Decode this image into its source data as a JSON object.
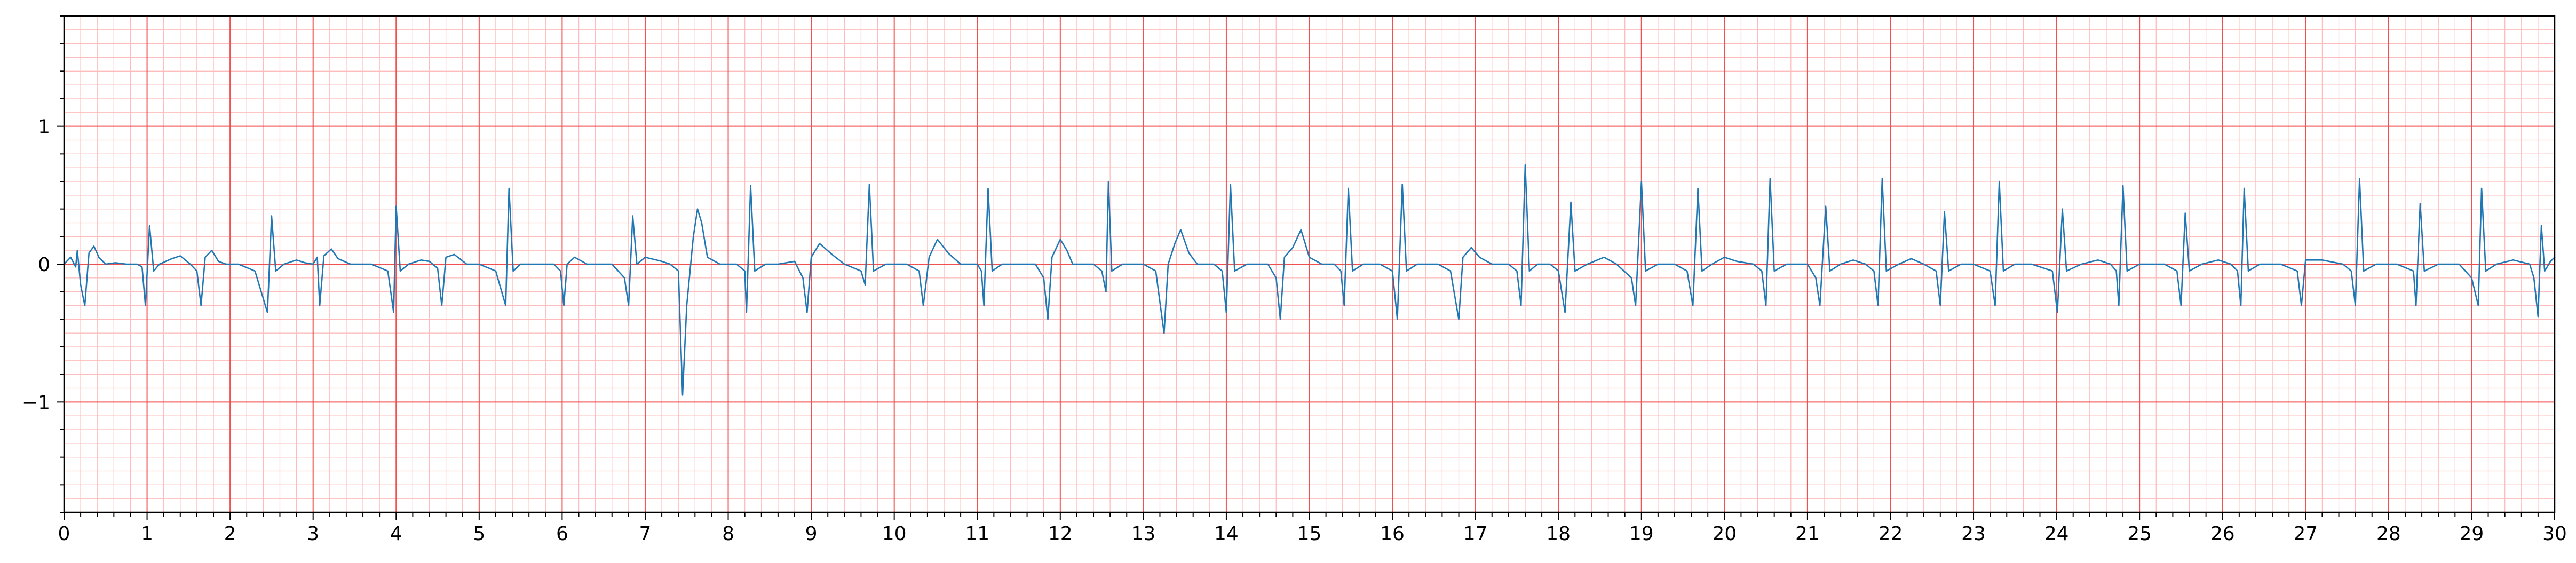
{
  "chart_data": {
    "type": "line",
    "title": "",
    "xlabel": "",
    "ylabel": "",
    "xlim": [
      0,
      30
    ],
    "ylim": [
      -1.8,
      1.8
    ],
    "grid": "ECG paper: major grid every 1 s / 1 unit (red), minor grid every 0.2 s / 0.1 unit (light red)",
    "x_ticks": [
      "0",
      "1",
      "2",
      "3",
      "4",
      "5",
      "6",
      "7",
      "8",
      "9",
      "10",
      "11",
      "12",
      "13",
      "14",
      "15",
      "16",
      "17",
      "18",
      "19",
      "20",
      "21",
      "22",
      "23",
      "24",
      "25",
      "26",
      "27",
      "28",
      "29",
      "30"
    ],
    "y_ticks": [
      {
        "value": 1,
        "label": "1"
      },
      {
        "value": 0,
        "label": "0"
      },
      {
        "value": -1,
        "label": "−1"
      }
    ],
    "colors": {
      "signal": "#1f77b4",
      "major_grid": "#f05050",
      "minor_grid": "#ffbcbc",
      "axes": "#000000"
    },
    "series": [
      {
        "name": "",
        "note_points": "x in seconds, y in signal units; ECG trace approximated from beat landmarks",
        "points": [
          [
            0.0,
            0.0
          ],
          [
            0.08,
            0.05
          ],
          [
            0.14,
            -0.02
          ],
          [
            0.16,
            0.1
          ],
          [
            0.2,
            -0.15
          ],
          [
            0.25,
            -0.3
          ],
          [
            0.3,
            0.08
          ],
          [
            0.36,
            0.13
          ],
          [
            0.42,
            0.05
          ],
          [
            0.5,
            0.0
          ],
          [
            0.62,
            0.01
          ],
          [
            0.75,
            0.0
          ],
          [
            0.88,
            0.0
          ],
          [
            0.94,
            -0.02
          ],
          [
            0.98,
            -0.3
          ],
          [
            1.03,
            0.28
          ],
          [
            1.08,
            -0.05
          ],
          [
            1.15,
            0.0
          ],
          [
            1.3,
            0.04
          ],
          [
            1.4,
            0.06
          ],
          [
            1.52,
            0.0
          ],
          [
            1.6,
            -0.05
          ],
          [
            1.65,
            -0.3
          ],
          [
            1.7,
            0.05
          ],
          [
            1.78,
            0.1
          ],
          [
            1.86,
            0.02
          ],
          [
            1.95,
            0.0
          ],
          [
            2.1,
            0.0
          ],
          [
            2.3,
            -0.05
          ],
          [
            2.45,
            -0.35
          ],
          [
            2.5,
            0.35
          ],
          [
            2.55,
            -0.05
          ],
          [
            2.65,
            0.0
          ],
          [
            2.8,
            0.03
          ],
          [
            2.9,
            0.01
          ],
          [
            3.0,
            0.0
          ],
          [
            3.05,
            0.05
          ],
          [
            3.08,
            -0.3
          ],
          [
            3.13,
            0.06
          ],
          [
            3.22,
            0.11
          ],
          [
            3.3,
            0.04
          ],
          [
            3.45,
            0.0
          ],
          [
            3.7,
            0.0
          ],
          [
            3.9,
            -0.05
          ],
          [
            3.97,
            -0.35
          ],
          [
            4.0,
            0.42
          ],
          [
            4.05,
            -0.05
          ],
          [
            4.15,
            0.0
          ],
          [
            4.3,
            0.03
          ],
          [
            4.4,
            0.02
          ],
          [
            4.5,
            -0.03
          ],
          [
            4.55,
            -0.3
          ],
          [
            4.6,
            0.05
          ],
          [
            4.7,
            0.07
          ],
          [
            4.85,
            0.0
          ],
          [
            5.0,
            0.0
          ],
          [
            5.2,
            -0.05
          ],
          [
            5.32,
            -0.3
          ],
          [
            5.36,
            0.55
          ],
          [
            5.41,
            -0.05
          ],
          [
            5.5,
            0.0
          ],
          [
            5.7,
            0.0
          ],
          [
            5.9,
            0.0
          ],
          [
            5.98,
            -0.05
          ],
          [
            6.02,
            -0.3
          ],
          [
            6.06,
            0.0
          ],
          [
            6.15,
            0.05
          ],
          [
            6.3,
            0.0
          ],
          [
            6.6,
            0.0
          ],
          [
            6.75,
            -0.1
          ],
          [
            6.8,
            -0.3
          ],
          [
            6.85,
            0.35
          ],
          [
            6.9,
            0.0
          ],
          [
            7.0,
            0.05
          ],
          [
            7.2,
            0.02
          ],
          [
            7.3,
            0.0
          ],
          [
            7.4,
            -0.05
          ],
          [
            7.45,
            -0.95
          ],
          [
            7.5,
            -0.3
          ],
          [
            7.58,
            0.2
          ],
          [
            7.63,
            0.4
          ],
          [
            7.68,
            0.3
          ],
          [
            7.75,
            0.05
          ],
          [
            7.9,
            0.0
          ],
          [
            8.1,
            0.0
          ],
          [
            8.2,
            -0.05
          ],
          [
            8.22,
            -0.35
          ],
          [
            8.27,
            0.57
          ],
          [
            8.32,
            -0.05
          ],
          [
            8.45,
            0.0
          ],
          [
            8.6,
            0.0
          ],
          [
            8.8,
            0.02
          ],
          [
            8.9,
            -0.1
          ],
          [
            8.95,
            -0.35
          ],
          [
            9.0,
            0.05
          ],
          [
            9.1,
            0.15
          ],
          [
            9.25,
            0.07
          ],
          [
            9.4,
            0.0
          ],
          [
            9.6,
            -0.05
          ],
          [
            9.65,
            -0.15
          ],
          [
            9.7,
            0.58
          ],
          [
            9.75,
            -0.05
          ],
          [
            9.9,
            0.0
          ],
          [
            10.15,
            0.0
          ],
          [
            10.3,
            -0.05
          ],
          [
            10.35,
            -0.3
          ],
          [
            10.42,
            0.05
          ],
          [
            10.52,
            0.18
          ],
          [
            10.65,
            0.08
          ],
          [
            10.8,
            0.0
          ],
          [
            11.0,
            0.0
          ],
          [
            11.05,
            -0.05
          ],
          [
            11.08,
            -0.3
          ],
          [
            11.13,
            0.55
          ],
          [
            11.18,
            -0.05
          ],
          [
            11.3,
            0.0
          ],
          [
            11.5,
            0.0
          ],
          [
            11.7,
            0.0
          ],
          [
            11.8,
            -0.1
          ],
          [
            11.85,
            -0.4
          ],
          [
            11.9,
            0.05
          ],
          [
            12.0,
            0.18
          ],
          [
            12.08,
            0.1
          ],
          [
            12.15,
            0.0
          ],
          [
            12.4,
            0.0
          ],
          [
            12.5,
            -0.05
          ],
          [
            12.55,
            -0.2
          ],
          [
            12.58,
            0.6
          ],
          [
            12.62,
            -0.05
          ],
          [
            12.75,
            0.0
          ],
          [
            13.0,
            0.0
          ],
          [
            13.15,
            -0.05
          ],
          [
            13.25,
            -0.5
          ],
          [
            13.3,
            0.0
          ],
          [
            13.38,
            0.15
          ],
          [
            13.45,
            0.25
          ],
          [
            13.55,
            0.08
          ],
          [
            13.65,
            0.0
          ],
          [
            13.85,
            0.0
          ],
          [
            13.95,
            -0.05
          ],
          [
            14.0,
            -0.35
          ],
          [
            14.05,
            0.58
          ],
          [
            14.1,
            -0.05
          ],
          [
            14.25,
            0.0
          ],
          [
            14.5,
            0.0
          ],
          [
            14.6,
            -0.1
          ],
          [
            14.65,
            -0.4
          ],
          [
            14.7,
            0.05
          ],
          [
            14.8,
            0.12
          ],
          [
            14.9,
            0.25
          ],
          [
            15.0,
            0.05
          ],
          [
            15.15,
            0.0
          ],
          [
            15.3,
            0.0
          ],
          [
            15.38,
            -0.05
          ],
          [
            15.42,
            -0.3
          ],
          [
            15.47,
            0.55
          ],
          [
            15.52,
            -0.05
          ],
          [
            15.65,
            0.0
          ],
          [
            15.85,
            0.0
          ],
          [
            16.0,
            -0.05
          ],
          [
            16.06,
            -0.4
          ],
          [
            16.12,
            0.58
          ],
          [
            16.17,
            -0.05
          ],
          [
            16.3,
            0.0
          ],
          [
            16.55,
            0.0
          ],
          [
            16.7,
            -0.05
          ],
          [
            16.8,
            -0.4
          ],
          [
            16.85,
            0.05
          ],
          [
            16.95,
            0.12
          ],
          [
            17.05,
            0.05
          ],
          [
            17.2,
            0.0
          ],
          [
            17.4,
            0.0
          ],
          [
            17.5,
            -0.05
          ],
          [
            17.55,
            -0.3
          ],
          [
            17.6,
            0.72
          ],
          [
            17.65,
            -0.05
          ],
          [
            17.75,
            0.0
          ],
          [
            17.9,
            0.0
          ],
          [
            18.0,
            -0.05
          ],
          [
            18.08,
            -0.35
          ],
          [
            18.15,
            0.45
          ],
          [
            18.2,
            -0.05
          ],
          [
            18.35,
            0.0
          ],
          [
            18.55,
            0.05
          ],
          [
            18.7,
            0.0
          ],
          [
            18.88,
            -0.1
          ],
          [
            18.93,
            -0.3
          ],
          [
            19.0,
            0.6
          ],
          [
            19.05,
            -0.05
          ],
          [
            19.2,
            0.0
          ],
          [
            19.4,
            0.0
          ],
          [
            19.55,
            -0.05
          ],
          [
            19.62,
            -0.3
          ],
          [
            19.68,
            0.55
          ],
          [
            19.73,
            -0.05
          ],
          [
            19.85,
            0.0
          ],
          [
            20.0,
            0.05
          ],
          [
            20.15,
            0.02
          ],
          [
            20.35,
            0.0
          ],
          [
            20.45,
            -0.05
          ],
          [
            20.5,
            -0.3
          ],
          [
            20.55,
            0.62
          ],
          [
            20.6,
            -0.05
          ],
          [
            20.75,
            0.0
          ],
          [
            21.0,
            0.0
          ],
          [
            21.1,
            -0.1
          ],
          [
            21.15,
            -0.3
          ],
          [
            21.22,
            0.42
          ],
          [
            21.27,
            -0.05
          ],
          [
            21.4,
            0.0
          ],
          [
            21.55,
            0.03
          ],
          [
            21.7,
            0.0
          ],
          [
            21.8,
            -0.05
          ],
          [
            21.85,
            -0.3
          ],
          [
            21.9,
            0.62
          ],
          [
            21.95,
            -0.05
          ],
          [
            22.1,
            0.0
          ],
          [
            22.25,
            0.04
          ],
          [
            22.4,
            0.0
          ],
          [
            22.55,
            -0.05
          ],
          [
            22.6,
            -0.3
          ],
          [
            22.65,
            0.38
          ],
          [
            22.7,
            -0.05
          ],
          [
            22.85,
            0.0
          ],
          [
            23.0,
            0.0
          ],
          [
            23.2,
            -0.05
          ],
          [
            23.26,
            -0.3
          ],
          [
            23.31,
            0.6
          ],
          [
            23.36,
            -0.05
          ],
          [
            23.5,
            0.0
          ],
          [
            23.7,
            0.0
          ],
          [
            23.95,
            -0.05
          ],
          [
            24.01,
            -0.35
          ],
          [
            24.07,
            0.4
          ],
          [
            24.12,
            -0.05
          ],
          [
            24.3,
            0.0
          ],
          [
            24.5,
            0.03
          ],
          [
            24.65,
            0.0
          ],
          [
            24.72,
            -0.05
          ],
          [
            24.75,
            -0.3
          ],
          [
            24.8,
            0.57
          ],
          [
            24.85,
            -0.05
          ],
          [
            25.0,
            0.0
          ],
          [
            25.3,
            0.0
          ],
          [
            25.45,
            -0.05
          ],
          [
            25.5,
            -0.3
          ],
          [
            25.55,
            0.37
          ],
          [
            25.6,
            -0.05
          ],
          [
            25.75,
            0.0
          ],
          [
            25.95,
            0.03
          ],
          [
            26.1,
            0.0
          ],
          [
            26.18,
            -0.05
          ],
          [
            26.22,
            -0.3
          ],
          [
            26.26,
            0.55
          ],
          [
            26.31,
            -0.05
          ],
          [
            26.45,
            0.0
          ],
          [
            26.7,
            0.0
          ],
          [
            26.9,
            -0.05
          ],
          [
            26.95,
            -0.3
          ],
          [
            27.0,
            0.03
          ],
          [
            27.2,
            0.03
          ],
          [
            27.45,
            0.0
          ],
          [
            27.55,
            -0.05
          ],
          [
            27.6,
            -0.3
          ],
          [
            27.65,
            0.62
          ],
          [
            27.7,
            -0.05
          ],
          [
            27.85,
            0.0
          ],
          [
            28.1,
            0.0
          ],
          [
            28.3,
            -0.05
          ],
          [
            28.33,
            -0.3
          ],
          [
            28.38,
            0.44
          ],
          [
            28.43,
            -0.05
          ],
          [
            28.6,
            0.0
          ],
          [
            28.85,
            0.0
          ],
          [
            29.0,
            -0.1
          ],
          [
            29.08,
            -0.3
          ],
          [
            29.12,
            0.55
          ],
          [
            29.17,
            -0.05
          ],
          [
            29.3,
            0.0
          ],
          [
            29.5,
            0.03
          ],
          [
            29.7,
            0.0
          ],
          [
            29.75,
            -0.1
          ],
          [
            29.8,
            -0.38
          ],
          [
            29.84,
            0.28
          ],
          [
            29.88,
            -0.05
          ],
          [
            29.95,
            0.02
          ],
          [
            30.0,
            0.05
          ]
        ]
      }
    ]
  }
}
